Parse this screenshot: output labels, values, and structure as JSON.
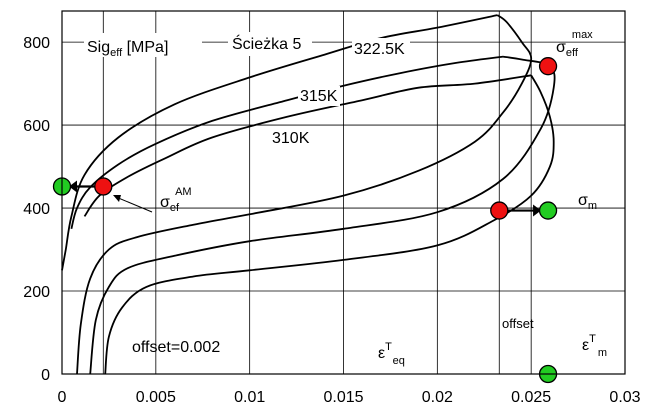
{
  "chart_data": {
    "type": "line",
    "xlim": [
      0,
      0.03
    ],
    "ylim": [
      0,
      875
    ],
    "x_ticks": [
      "0",
      "0.005",
      "0.01",
      "0.015",
      "0.02",
      "0.025",
      "0.03"
    ],
    "y_ticks": [
      "0",
      "200",
      "400",
      "600",
      "800"
    ],
    "grid": true,
    "series": [
      {
        "name": "322.5K",
        "up": [
          [
            0.0008,
            0
          ],
          [
            0.001,
            120
          ],
          [
            0.0015,
            230
          ],
          [
            0.0025,
            300
          ],
          [
            0.004,
            330
          ],
          [
            0.007,
            360
          ],
          [
            0.01,
            385
          ],
          [
            0.015,
            430
          ],
          [
            0.019,
            490
          ],
          [
            0.022,
            560
          ],
          [
            0.0235,
            630
          ],
          [
            0.0245,
            700
          ],
          [
            0.025,
            760
          ],
          [
            0.0245,
            800
          ],
          [
            0.0237,
            848
          ],
          [
            0.0232,
            865
          ]
        ],
        "down": [
          [
            0.0232,
            865
          ],
          [
            0.02,
            835
          ],
          [
            0.017,
            810
          ],
          [
            0.014,
            770
          ],
          [
            0.01,
            715
          ],
          [
            0.006,
            650
          ],
          [
            0.003,
            570
          ],
          [
            0.0012,
            480
          ],
          [
            0.0005,
            380
          ],
          [
            0.0002,
            300
          ],
          [
            0,
            250
          ]
        ]
      },
      {
        "name": "315K",
        "up": [
          [
            0.0015,
            0
          ],
          [
            0.0018,
            130
          ],
          [
            0.0025,
            210
          ],
          [
            0.0035,
            255
          ],
          [
            0.006,
            285
          ],
          [
            0.01,
            320
          ],
          [
            0.015,
            350
          ],
          [
            0.02,
            390
          ],
          [
            0.0235,
            470
          ],
          [
            0.0255,
            590
          ],
          [
            0.0262,
            690
          ],
          [
            0.026,
            742
          ],
          [
            0.0245,
            758
          ],
          [
            0.0235,
            765
          ]
        ],
        "down": [
          [
            0.0235,
            765
          ],
          [
            0.021,
            750
          ],
          [
            0.018,
            725
          ],
          [
            0.015,
            695
          ],
          [
            0.012,
            660
          ],
          [
            0.008,
            610
          ],
          [
            0.005,
            555
          ],
          [
            0.003,
            505
          ],
          [
            0.0015,
            450
          ],
          [
            0.0008,
            400
          ],
          [
            0.0005,
            350
          ]
        ]
      },
      {
        "name": "310K",
        "up": [
          [
            0.0023,
            0
          ],
          [
            0.0025,
            90
          ],
          [
            0.0032,
            160
          ],
          [
            0.0045,
            210
          ],
          [
            0.007,
            235
          ],
          [
            0.01,
            250
          ],
          [
            0.015,
            275
          ],
          [
            0.02,
            310
          ],
          [
            0.023,
            370
          ],
          [
            0.025,
            430
          ],
          [
            0.026,
            500
          ],
          [
            0.0262,
            560
          ],
          [
            0.026,
            620
          ],
          [
            0.0255,
            680
          ],
          [
            0.025,
            720
          ]
        ],
        "down": [
          [
            0.025,
            720
          ],
          [
            0.022,
            700
          ],
          [
            0.019,
            690
          ],
          [
            0.016,
            660
          ],
          [
            0.012,
            620
          ],
          [
            0.008,
            570
          ],
          [
            0.0055,
            520
          ],
          [
            0.0035,
            475
          ],
          [
            0.002,
            430
          ],
          [
            0.0012,
            380
          ]
        ]
      }
    ],
    "markers": [
      {
        "x": 0.0,
        "y": 452,
        "color": "#22cc22"
      },
      {
        "x": 0.0022,
        "y": 452,
        "color": "#ee1111"
      },
      {
        "x": 0.0233,
        "y": 394,
        "color": "#ee1111"
      },
      {
        "x": 0.0259,
        "y": 394,
        "color": "#22cc22"
      },
      {
        "x": 0.0259,
        "y": 742,
        "color": "#ee1111"
      },
      {
        "x": 0.0259,
        "y": 0,
        "color": "#22cc22"
      }
    ],
    "marker_links": [
      [
        [
          0.0022,
          452
        ],
        [
          0.0,
          452
        ]
      ],
      [
        [
          0.0233,
          394
        ],
        [
          0.0259,
          394
        ]
      ]
    ],
    "vlines": [
      0.0022,
      0.0233
    ],
    "annotations": {
      "sig_eff": {
        "main": "Sig",
        "sub": "eff",
        "rest": " [MPa]"
      },
      "sciezka": "Ścieżka 5",
      "label_3225": "322.5K",
      "label_315": "315K",
      "label_310": "310K",
      "sigma_eff_max": {
        "sym": "σ",
        "sub": "eff",
        "sup": "max"
      },
      "sigma_ef_am": {
        "sym": "σ",
        "sub": "ef",
        "sup": "AM"
      },
      "sigma_m": {
        "sym": "σ",
        "sub": "m"
      },
      "offset_left": "offset=0.002",
      "offset_right": "offset",
      "eps_eq": {
        "sym": "ε",
        "sup": "T",
        "sub": "eq"
      },
      "eps_m": {
        "sym": "ε",
        "sup": "T",
        "sub": "m"
      }
    }
  }
}
